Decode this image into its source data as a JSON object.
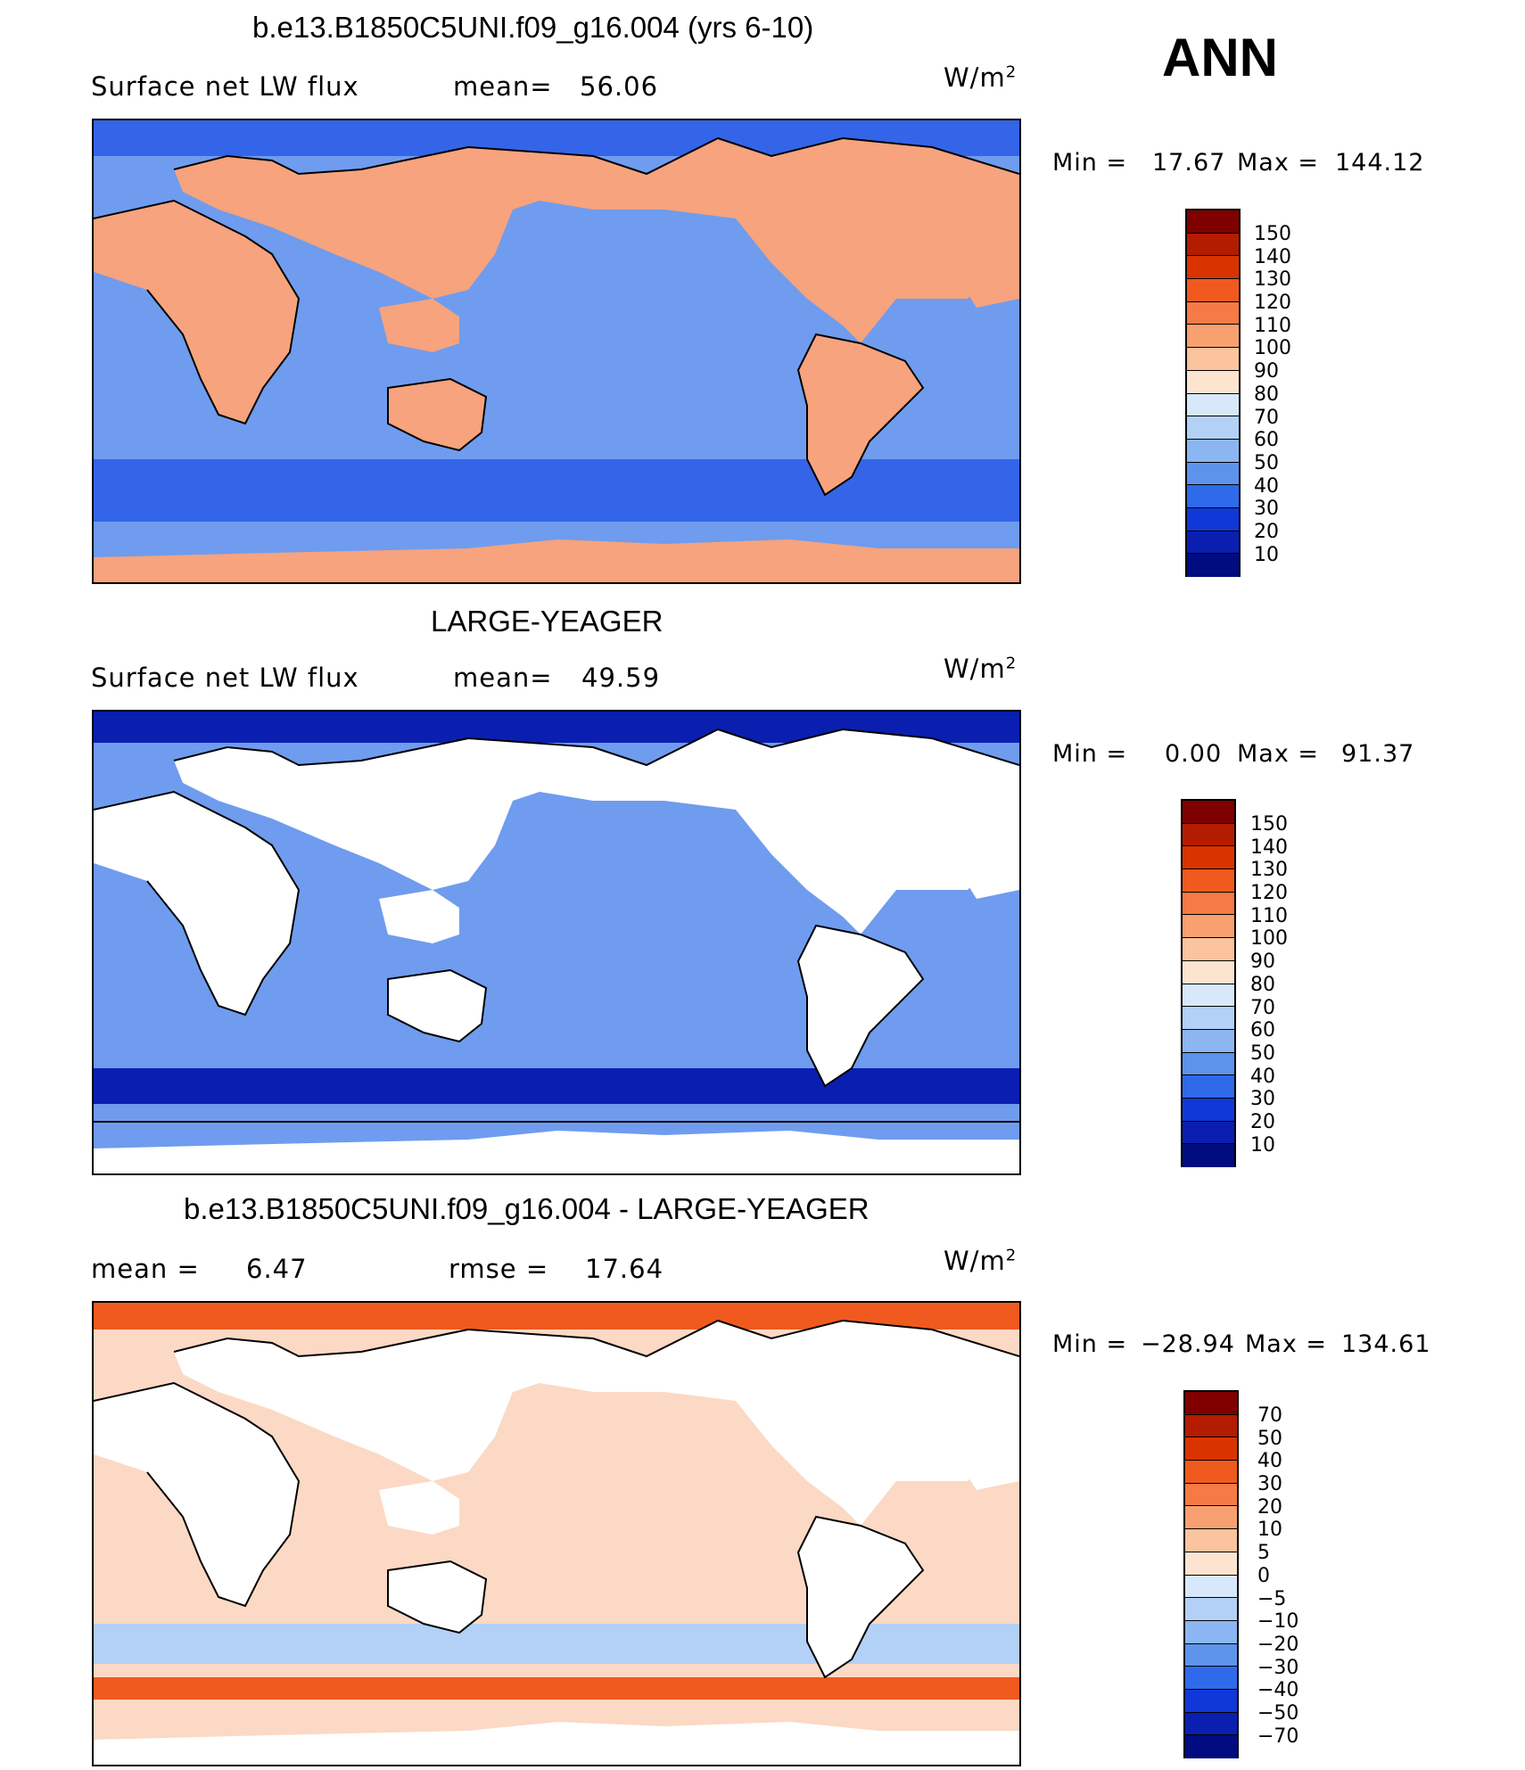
{
  "season": "ANN",
  "panels": [
    {
      "title": "b.e13.B1850C5UNI.f09_g16.004 (yrs 6-10)",
      "left_label": "Surface net LW flux",
      "middle_label": "mean=",
      "middle_value": "56.06",
      "units": "W/m",
      "units_sup": "2",
      "min_label": "Min =",
      "min_value": "17.67",
      "max_label": "Max =",
      "max_value": "144.12",
      "colorbar_labels": [
        "150",
        "140",
        "130",
        "120",
        "110",
        "100",
        "90",
        "80",
        "70",
        "60",
        "50",
        "40",
        "30",
        "20",
        "10"
      ],
      "colorbar_colors": [
        "#800000",
        "#b31c00",
        "#d93300",
        "#f05a1e",
        "#f57a45",
        "#f9a070",
        "#fbc39e",
        "#fde4d0",
        "#d7e8fb",
        "#b3d0f7",
        "#8cb6f2",
        "#5e93ec",
        "#2f6aeb",
        "#1038d8",
        "#0a1fb0",
        "#000c80"
      ],
      "land_fill": "#f6a37e",
      "ocean_fill": "#6f9cee",
      "polar_fill": "#3465e8"
    },
    {
      "title": "LARGE-YEAGER",
      "left_label": "Surface net LW flux",
      "middle_label": "mean=",
      "middle_value": "49.59",
      "units": "W/m",
      "units_sup": "2",
      "min_label": "Min =",
      "min_value": "0.00",
      "max_label": "Max =",
      "max_value": "91.37",
      "colorbar_labels": [
        "150",
        "140",
        "130",
        "120",
        "110",
        "100",
        "90",
        "80",
        "70",
        "60",
        "50",
        "40",
        "30",
        "20",
        "10"
      ],
      "colorbar_colors": [
        "#800000",
        "#b31c00",
        "#d93300",
        "#f05a1e",
        "#f57a45",
        "#f9a070",
        "#fbc39e",
        "#fde4d0",
        "#d7e8fb",
        "#b3d0f7",
        "#8cb6f2",
        "#5e93ec",
        "#2f6aeb",
        "#1038d8",
        "#0a1fb0",
        "#000c80"
      ],
      "land_fill": "#ffffff",
      "ocean_fill": "#6f9cee",
      "polar_fill": "#0a1fb0"
    },
    {
      "title": "b.e13.B1850C5UNI.f09_g16.004 - LARGE-YEAGER",
      "left_label": "mean =",
      "left_value": "6.47",
      "middle_label": "rmse =",
      "middle_value": "17.64",
      "units": "W/m",
      "units_sup": "2",
      "min_label": "Min =",
      "min_value": "−28.94",
      "max_label": "Max =",
      "max_value": "134.61",
      "colorbar_labels": [
        "70",
        "50",
        "40",
        "30",
        "20",
        "10",
        "5",
        "0",
        "−5",
        "−10",
        "−20",
        "−30",
        "−40",
        "−50",
        "−70"
      ],
      "colorbar_colors": [
        "#800000",
        "#b31c00",
        "#d93300",
        "#f05a1e",
        "#f57a45",
        "#f9a070",
        "#fbc39e",
        "#fde4d0",
        "#d7e8fb",
        "#b3d0f7",
        "#8cb6f2",
        "#5e93ec",
        "#2f6aeb",
        "#1038d8",
        "#0a1fb0",
        "#000c80"
      ],
      "land_fill": "#ffffff",
      "ocean_fill": "#fbd9c4",
      "polar_fill": "#f05a1e"
    }
  ],
  "chart_data": [
    {
      "type": "heatmap",
      "title": "b.e13.B1850C5UNI.f09_g16.004 (yrs 6-10)",
      "variable": "Surface net LW flux",
      "units": "W/m2",
      "mean": 56.06,
      "min": 17.67,
      "max": 144.12,
      "contour_levels": [
        10,
        20,
        30,
        40,
        50,
        60,
        70,
        80,
        90,
        100,
        110,
        120,
        130,
        140,
        150
      ]
    },
    {
      "type": "heatmap",
      "title": "LARGE-YEAGER",
      "variable": "Surface net LW flux",
      "units": "W/m2",
      "mean": 49.59,
      "min": 0.0,
      "max": 91.37,
      "contour_levels": [
        10,
        20,
        30,
        40,
        50,
        60,
        70,
        80,
        90,
        100,
        110,
        120,
        130,
        140,
        150
      ]
    },
    {
      "type": "heatmap",
      "title": "b.e13.B1850C5UNI.f09_g16.004 - LARGE-YEAGER",
      "units": "W/m2",
      "mean": 6.47,
      "rmse": 17.64,
      "min": -28.94,
      "max": 134.61,
      "contour_levels": [
        -70,
        -50,
        -40,
        -30,
        -20,
        -10,
        -5,
        0,
        5,
        10,
        20,
        30,
        40,
        50,
        70
      ]
    }
  ]
}
